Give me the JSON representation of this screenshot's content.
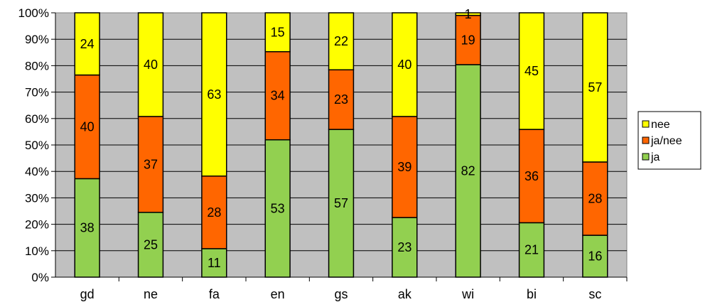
{
  "chart_data": {
    "type": "bar",
    "stacked": "percent",
    "categories": [
      "gd",
      "ne",
      "fa",
      "en",
      "gs",
      "ak",
      "wi",
      "bi",
      "sc"
    ],
    "series": [
      {
        "name": "ja",
        "values": [
          38,
          25,
          11,
          53,
          57,
          23,
          82,
          21,
          16
        ],
        "color": "#92D050"
      },
      {
        "name": "ja/nee",
        "values": [
          40,
          37,
          28,
          34,
          23,
          39,
          19,
          36,
          28
        ],
        "color": "#FF6600"
      },
      {
        "name": "nee",
        "values": [
          24,
          40,
          63,
          15,
          22,
          40,
          1,
          45,
          57
        ],
        "color": "#FFFF00"
      }
    ],
    "y_ticks": [
      "0%",
      "10%",
      "20%",
      "30%",
      "40%",
      "50%",
      "60%",
      "70%",
      "80%",
      "90%",
      "100%"
    ],
    "ylim": [
      0,
      100
    ],
    "grid": true,
    "plot_background": "#C0C0C0",
    "legend_position": "right",
    "legend_order": [
      "nee",
      "ja/nee",
      "ja"
    ]
  }
}
